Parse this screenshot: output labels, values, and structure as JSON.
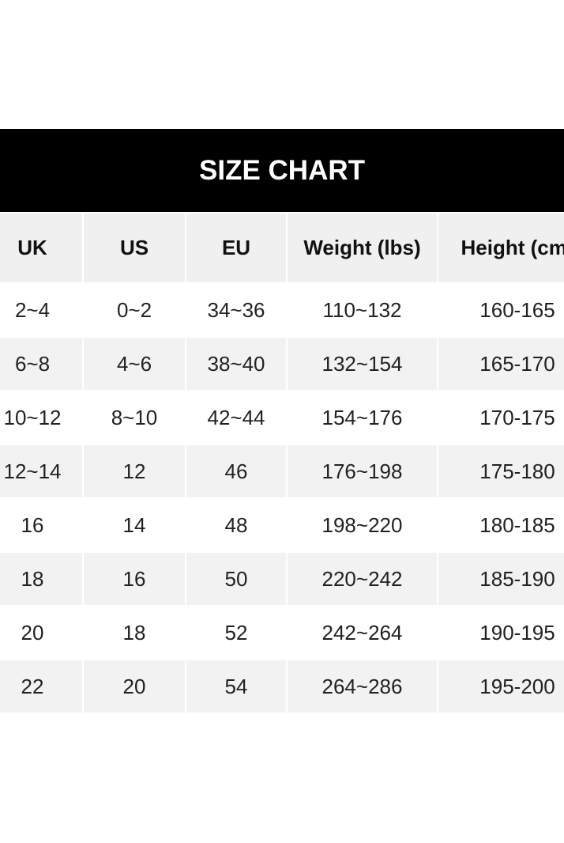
{
  "title": "SIZE CHART",
  "table": {
    "header": [
      "UK",
      "US",
      "EU",
      "Weight (lbs)",
      "Height (cm)"
    ],
    "rows": [
      [
        "2~4",
        "0~2",
        "34~36",
        "110~132",
        "160-165"
      ],
      [
        "6~8",
        "4~6",
        "38~40",
        "132~154",
        "165-170"
      ],
      [
        "10~12",
        "8~10",
        "42~44",
        "154~176",
        "170-175"
      ],
      [
        "12~14",
        "12",
        "46",
        "176~198",
        "175-180"
      ],
      [
        "16",
        "14",
        "48",
        "198~220",
        "180-185"
      ],
      [
        "18",
        "16",
        "50",
        "220~242",
        "185-190"
      ],
      [
        "20",
        "18",
        "52",
        "242~264",
        "190-195"
      ],
      [
        "22",
        "20",
        "54",
        "264~286",
        "195-200"
      ]
    ]
  }
}
